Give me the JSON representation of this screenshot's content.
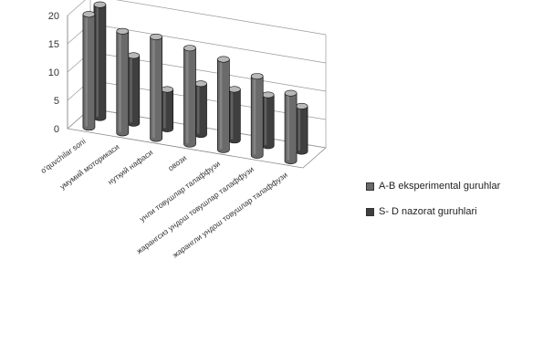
{
  "chart_data": {
    "type": "bar",
    "style": "3d-cylinder",
    "categories": [
      "o'quvchilar soni",
      "умумий моторикаси",
      "нутқий нафаси",
      "овози",
      "унли товушлар талаффузи",
      "жарангсиз ундош товушлар талаффузи",
      "жарангли ундош товушлар талаффузи"
    ],
    "series": [
      {
        "name": "A-B  eksperimental guruhlar",
        "values": [
          20,
          18,
          18,
          17,
          16,
          14,
          12
        ],
        "color": "#6a6a6a"
      },
      {
        "name": "S- D  nazorat guruhlari",
        "values": [
          20,
          12,
          7,
          9,
          9,
          9,
          8
        ],
        "color": "#3f3f3f"
      }
    ],
    "yticks": [
      0,
      5,
      10,
      15,
      20
    ],
    "ylim": [
      0,
      20
    ],
    "grid": true,
    "legend_position": "right"
  }
}
